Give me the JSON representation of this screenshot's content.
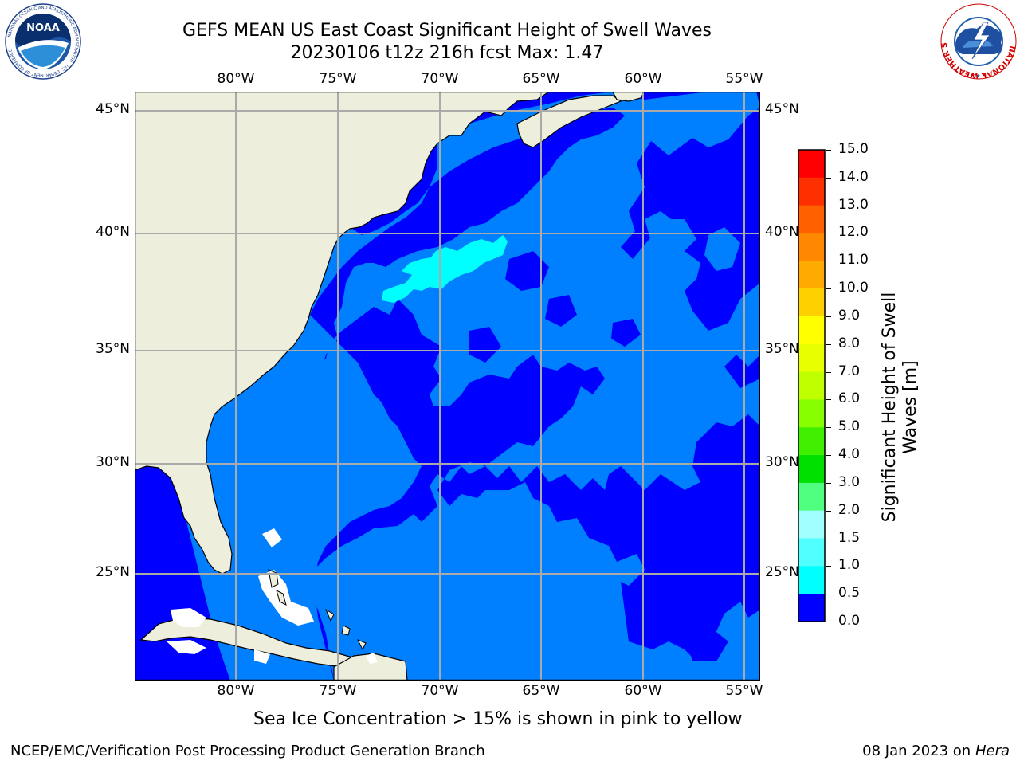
{
  "title": {
    "line1": "GEFS MEAN US East Coast Significant Height of Swell Waves",
    "line2": "20230106 t12z 216h fcst   Max: 1.47"
  },
  "map": {
    "lon_labels": [
      "80°W",
      "75°W",
      "70°W",
      "65°W",
      "60°W",
      "55°W"
    ],
    "lat_labels": [
      "45°N",
      "40°N",
      "35°N",
      "30°N",
      "25°N"
    ],
    "colors": {
      "land": "#eeeedc",
      "swell_0_0_5": "#0000ff",
      "swell_0_5_1_0": "#0080ff",
      "swell_1_0_1_5": "#00ffff",
      "grid": "#aaaaaa"
    }
  },
  "colorbar": {
    "title_line1": "Significant Height of Swell",
    "title_line2": "Waves [m]",
    "levels": [
      "15.0",
      "14.0",
      "13.0",
      "12.0",
      "11.0",
      "10.0",
      "9.0",
      "8.0",
      "7.0",
      "6.0",
      "5.0",
      "4.0",
      "3.0",
      "2.0",
      "1.5",
      "1.0",
      "0.5",
      "0.0"
    ],
    "colors": [
      "#ff0000",
      "#ff3000",
      "#ff6000",
      "#ff8800",
      "#ffaa00",
      "#ffd000",
      "#ffff00",
      "#e8ff00",
      "#bfff00",
      "#88ff00",
      "#40f000",
      "#00e000",
      "#50ff80",
      "#a0ffff",
      "#50ffff",
      "#00ffff",
      "#0080ff",
      "#0000ff"
    ]
  },
  "caption": "Sea Ice Concentration > 15% is shown in pink to yellow",
  "footer": {
    "credit": "NCEP/EMC/Verification Post Processing Product Generation Branch",
    "date": "08 Jan 2023 on",
    "machine": "Hera"
  },
  "logos": {
    "left": {
      "text": "NOAA",
      "ring": "NATIONAL OCEANIC AND ATMOSPHERIC ADMINISTRATION · U.S. DEPARTMENT OF COMMERCE"
    },
    "right": {
      "ring": "NATIONAL WEATHER SERVICE"
    }
  }
}
